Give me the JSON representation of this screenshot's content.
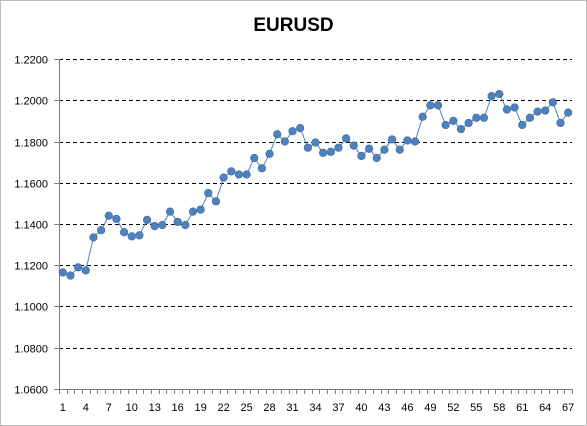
{
  "chart_data": {
    "type": "line",
    "title": "EURUSD",
    "xlabel": "",
    "ylabel": "",
    "ylim": [
      1.06,
      1.22
    ],
    "y_ticks": [
      "1.0600",
      "1.0800",
      "1.1000",
      "1.1200",
      "1.1400",
      "1.1600",
      "1.1800",
      "1.2000",
      "1.2200"
    ],
    "x_tick_labels": [
      "1",
      "4",
      "7",
      "10",
      "13",
      "16",
      "19",
      "22",
      "25",
      "28",
      "31",
      "34",
      "37",
      "40",
      "43",
      "46",
      "49",
      "52",
      "55",
      "58",
      "61",
      "64",
      "67"
    ],
    "grid": "horizontal-dashed",
    "legend": "none",
    "series": [
      {
        "color": "#4f81bd",
        "x": [
          1,
          2,
          3,
          4,
          5,
          6,
          7,
          8,
          9,
          10,
          11,
          12,
          13,
          14,
          15,
          16,
          17,
          18,
          19,
          20,
          21,
          22,
          23,
          24,
          25,
          26,
          27,
          28,
          29,
          30,
          31,
          32,
          33,
          34,
          35,
          36,
          37,
          38,
          39,
          40,
          41,
          42,
          43,
          44,
          45,
          46,
          47,
          48,
          49,
          50,
          51,
          52,
          53,
          54,
          55,
          56,
          57,
          58,
          59,
          60,
          61,
          62,
          63,
          64,
          65,
          66,
          67
        ],
        "values": [
          1.1165,
          1.115,
          1.119,
          1.1175,
          1.1335,
          1.137,
          1.144,
          1.1425,
          1.136,
          1.134,
          1.1345,
          1.142,
          1.139,
          1.1395,
          1.146,
          1.141,
          1.1395,
          1.146,
          1.147,
          1.155,
          1.151,
          1.1625,
          1.1655,
          1.164,
          1.164,
          1.172,
          1.167,
          1.174,
          1.1835,
          1.18,
          1.185,
          1.1865,
          1.177,
          1.1795,
          1.1745,
          1.175,
          1.177,
          1.1815,
          1.178,
          1.173,
          1.1765,
          1.172,
          1.176,
          1.181,
          1.176,
          1.1805,
          1.18,
          1.192,
          1.1975,
          1.1975,
          1.188,
          1.19,
          1.186,
          1.189,
          1.1915,
          1.1915,
          1.202,
          1.203,
          1.1955,
          1.1965,
          1.188,
          1.1915,
          1.1945,
          1.195,
          1.199,
          1.189,
          1.194
        ]
      }
    ]
  }
}
